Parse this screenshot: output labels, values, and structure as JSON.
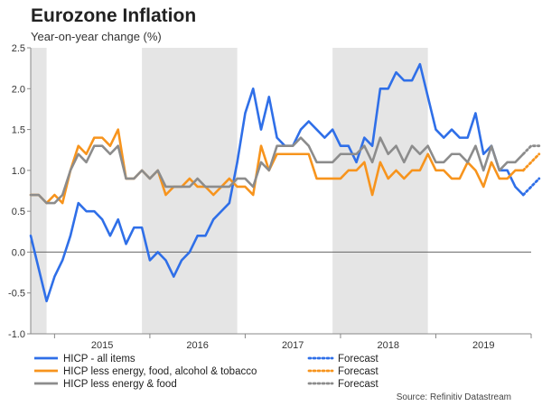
{
  "chart_data": {
    "type": "line",
    "title": "Eurozone Inflation",
    "subtitle": "Year-on-year change (%)",
    "source": "Source: Refinitiv Datastream",
    "ylim": [
      -1.0,
      2.5
    ],
    "yticks": [
      "-1.0",
      "-0.5",
      "0.0",
      "0.5",
      "1.0",
      "1.5",
      "2.0",
      "2.5"
    ],
    "yticks_values": [
      -1.0,
      -0.5,
      0.0,
      0.5,
      1.0,
      1.5,
      2.0,
      2.5
    ],
    "x_start": "2014-10",
    "x_end": "2020-01",
    "year_labels": [
      {
        "label": "2015",
        "x": "2015-07"
      },
      {
        "label": "2016",
        "x": "2016-07"
      },
      {
        "label": "2017",
        "x": "2017-07"
      },
      {
        "label": "2018",
        "x": "2018-07"
      },
      {
        "label": "2019",
        "x": "2019-07"
      }
    ],
    "shaded_periods": [
      [
        "2014-10",
        "2014-12"
      ],
      [
        "2015-12",
        "2016-12"
      ],
      [
        "2017-12",
        "2018-12"
      ]
    ],
    "grid": false,
    "legend_position": "bottom",
    "series": [
      {
        "name": "HICP - all items",
        "color": "#2f6fe8",
        "values": [
          0.2,
          -0.2,
          -0.6,
          -0.3,
          -0.1,
          0.2,
          0.6,
          0.5,
          0.5,
          0.4,
          0.2,
          0.4,
          0.1,
          0.3,
          0.3,
          -0.1,
          0.0,
          -0.1,
          -0.3,
          -0.1,
          0.0,
          0.2,
          0.2,
          0.4,
          0.5,
          0.6,
          1.1,
          1.7,
          2.0,
          1.5,
          1.9,
          1.4,
          1.3,
          1.3,
          1.5,
          1.6,
          1.5,
          1.4,
          1.5,
          1.3,
          1.3,
          1.1,
          1.4,
          1.3,
          2.0,
          2.0,
          2.2,
          2.1,
          2.1,
          2.3,
          1.9,
          1.5,
          1.4,
          1.5,
          1.4,
          1.4,
          1.7,
          1.2,
          1.3,
          1.0,
          1.0,
          0.8,
          0.7
        ],
        "forecast": [
          0.7,
          0.8,
          0.9
        ]
      },
      {
        "name": "HICP less energy, food, alcohol & tobacco",
        "color": "#f7941d",
        "values": [
          0.7,
          0.7,
          0.6,
          0.7,
          0.6,
          1.0,
          1.3,
          1.2,
          1.4,
          1.4,
          1.3,
          1.5,
          0.9,
          0.9,
          1.0,
          0.9,
          1.0,
          0.7,
          0.8,
          0.8,
          0.9,
          0.8,
          0.8,
          0.7,
          0.8,
          0.9,
          0.8,
          0.8,
          0.7,
          1.3,
          1.0,
          1.2,
          1.2,
          1.2,
          1.2,
          1.2,
          0.9,
          0.9,
          0.9,
          0.9,
          1.0,
          1.0,
          1.1,
          0.7,
          1.1,
          0.9,
          1.0,
          0.9,
          1.0,
          1.0,
          1.2,
          1.0,
          1.0,
          0.9,
          0.9,
          1.1,
          1.0,
          0.8,
          1.1,
          0.9,
          0.9,
          1.0,
          1.0
        ],
        "forecast": [
          1.0,
          1.1,
          1.2
        ]
      },
      {
        "name": "HICP less energy & food",
        "color": "#8c8c8c",
        "values": [
          0.7,
          0.7,
          0.6,
          0.6,
          0.7,
          1.0,
          1.2,
          1.1,
          1.3,
          1.3,
          1.2,
          1.3,
          0.9,
          0.9,
          1.0,
          0.9,
          1.0,
          0.8,
          0.8,
          0.8,
          0.8,
          0.9,
          0.8,
          0.8,
          0.8,
          0.8,
          0.9,
          0.9,
          0.8,
          1.1,
          1.0,
          1.3,
          1.3,
          1.3,
          1.4,
          1.3,
          1.1,
          1.1,
          1.1,
          1.2,
          1.2,
          1.2,
          1.3,
          1.1,
          1.4,
          1.2,
          1.3,
          1.1,
          1.3,
          1.2,
          1.3,
          1.1,
          1.1,
          1.2,
          1.2,
          1.1,
          1.3,
          1.0,
          1.3,
          1.0,
          1.1,
          1.1,
          1.2
        ],
        "forecast": [
          1.2,
          1.3,
          1.3
        ]
      }
    ],
    "legend": [
      {
        "label": "HICP - all items",
        "color": "#2f6fe8",
        "style": "solid"
      },
      {
        "label": "HICP less energy, food, alcohol & tobacco",
        "color": "#f7941d",
        "style": "solid"
      },
      {
        "label": "HICP less energy & food",
        "color": "#8c8c8c",
        "style": "solid"
      },
      {
        "label": "Forecast",
        "color": "#2f6fe8",
        "style": "dotted"
      },
      {
        "label": "Forecast",
        "color": "#f7941d",
        "style": "dotted"
      },
      {
        "label": "Forecast",
        "color": "#8c8c8c",
        "style": "dotted"
      }
    ]
  }
}
